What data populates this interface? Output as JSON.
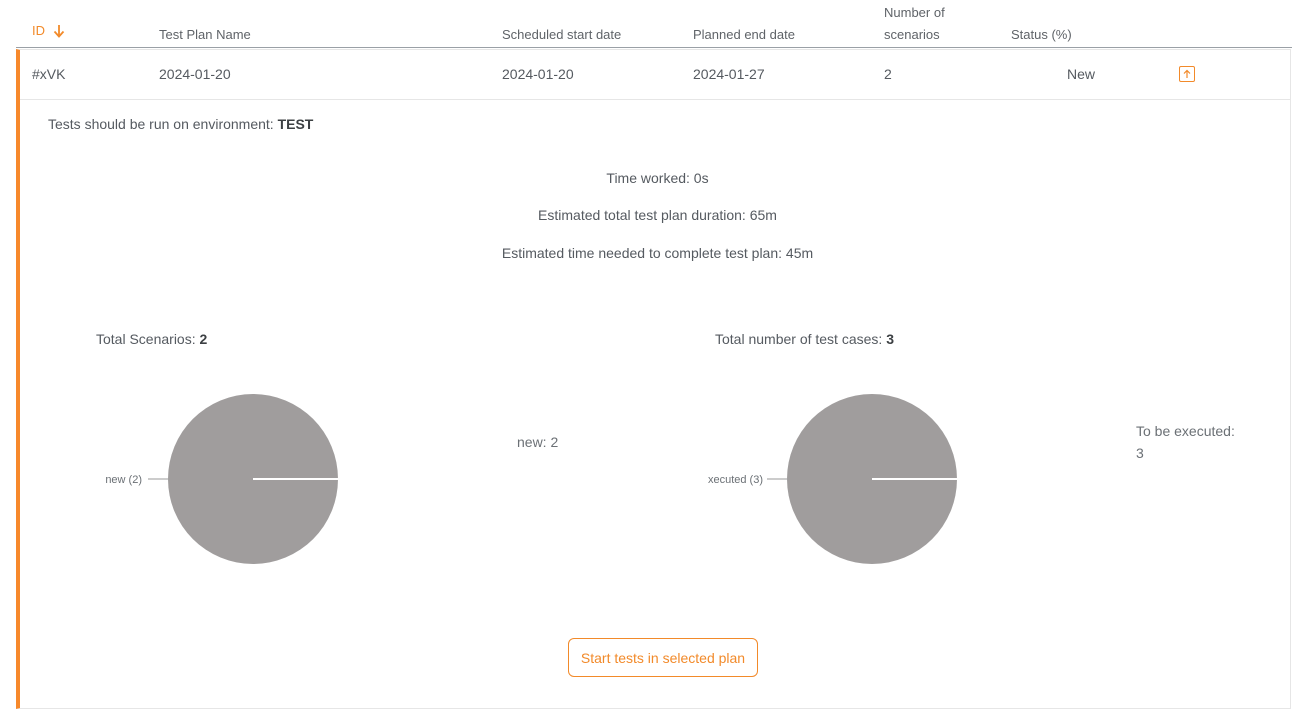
{
  "table": {
    "columns": {
      "id": "ID",
      "name": "Test Plan Name",
      "start": "Scheduled start date",
      "end": "Planned end date",
      "num_scenarios": "Number of scenarios",
      "status": "Status (%)"
    },
    "row": {
      "id": "#xVK",
      "name": "2024-01-20",
      "start": "2024-01-20",
      "end": "2024-01-27",
      "num_scenarios": "2",
      "status": "New"
    }
  },
  "details": {
    "env_prefix": "Tests should be run on environment: ",
    "env_value": "TEST",
    "time_worked": "Time worked: 0s",
    "est_total": "Estimated total test plan duration: 65m",
    "est_remaining": "Estimated time needed to complete test plan: 45m"
  },
  "charts": [
    {
      "title_prefix": "Total Scenarios: ",
      "title_value": "2",
      "slice_label": "new (2)",
      "legend": "new: 2",
      "color": "#a09d9d"
    },
    {
      "title_prefix": "Total number of test cases: ",
      "title_value": "3",
      "slice_label": "xecuted (3)",
      "legend": "To be executed: 3",
      "color": "#a09d9d"
    }
  ],
  "actions": {
    "start_tests": "Start tests in selected plan"
  },
  "colors": {
    "accent": "#f28a2a",
    "pie_fill": "#a09d9d"
  },
  "icons": {
    "sort": "arrow-down-icon",
    "collapse": "arrow-up-icon"
  }
}
